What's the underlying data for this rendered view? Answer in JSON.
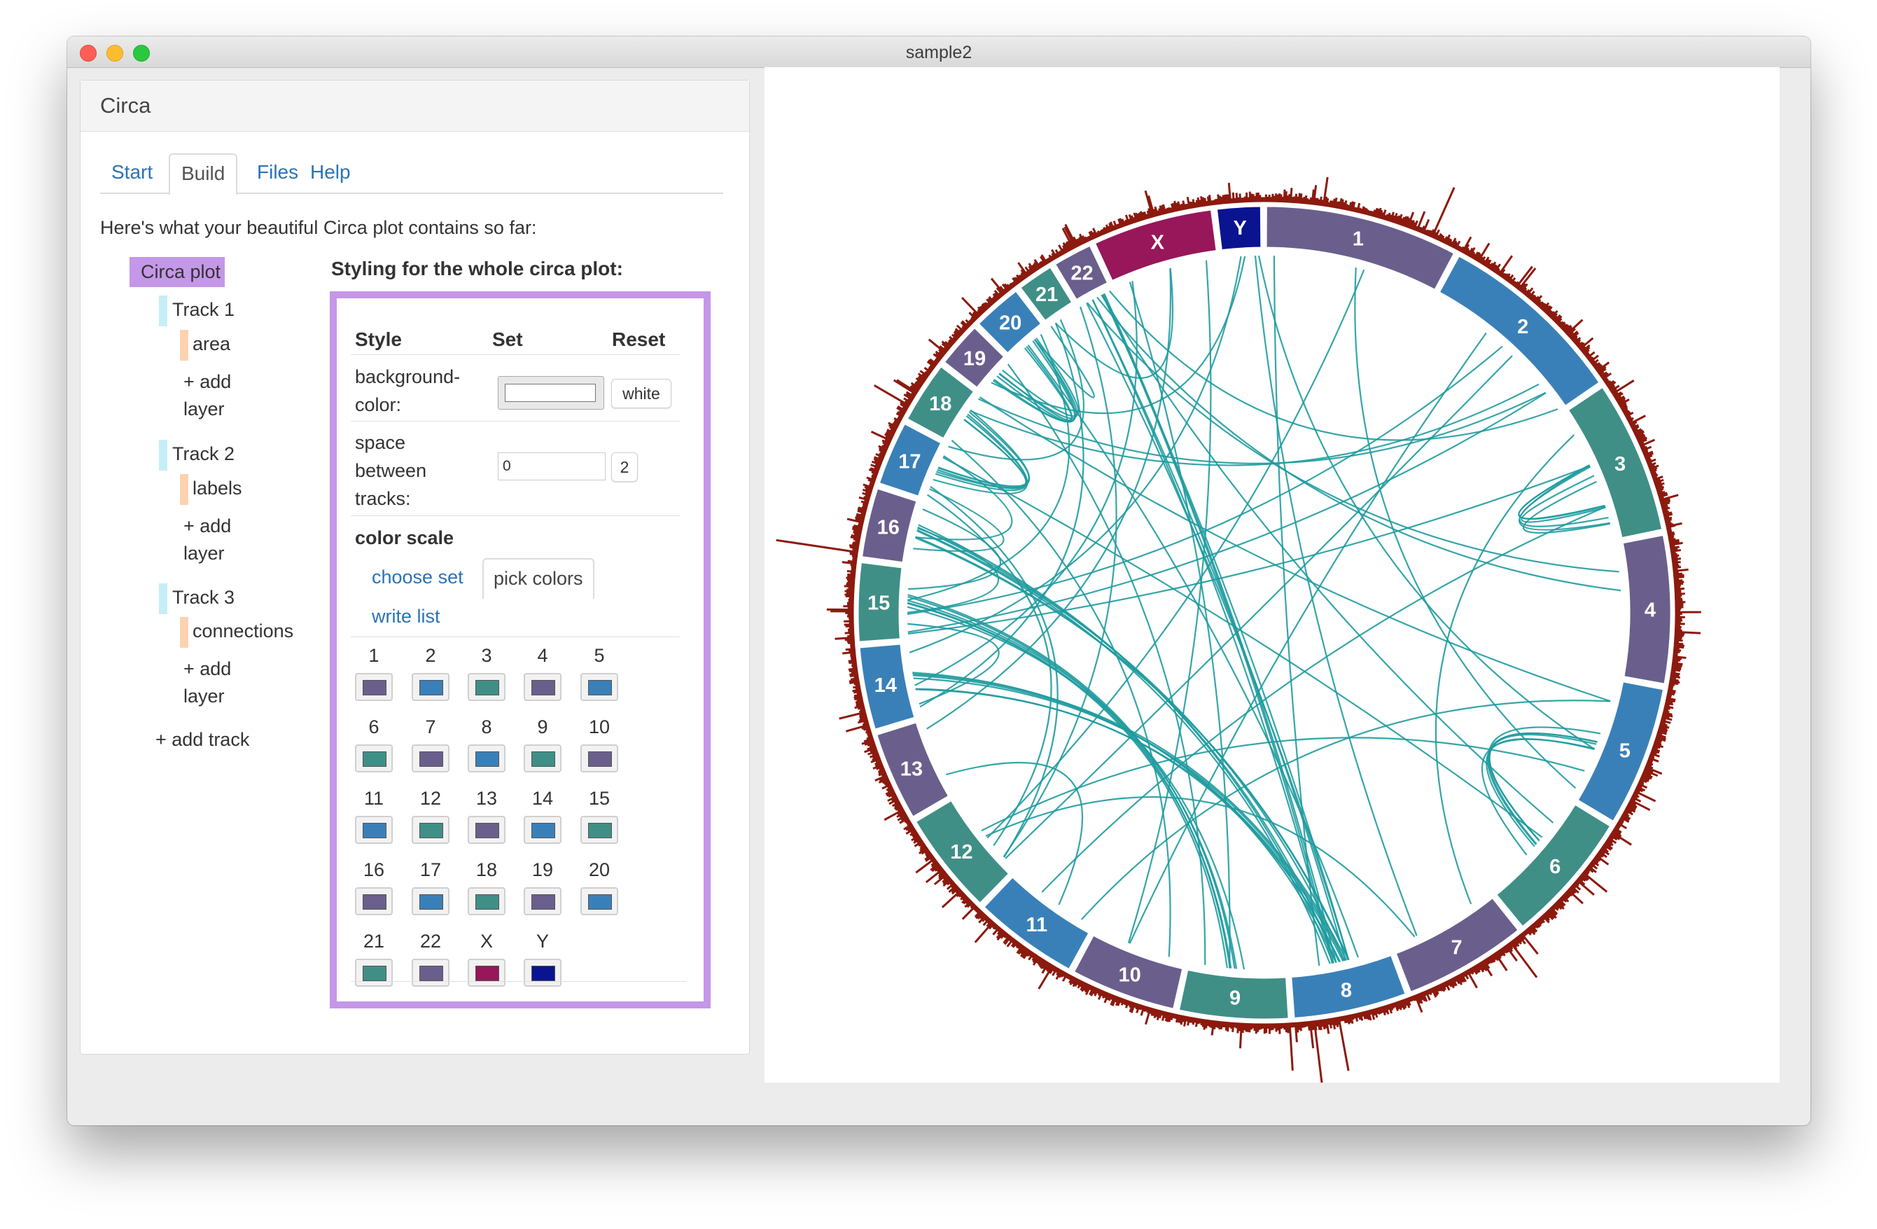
{
  "window": {
    "title": "sample2"
  },
  "app": {
    "title": "Circa"
  },
  "tabs": [
    {
      "label": "Start"
    },
    {
      "label": "Build"
    },
    {
      "label": "Files"
    },
    {
      "label": "Help"
    }
  ],
  "intro": "Here's what your beautiful Circa plot contains so far:",
  "tree": {
    "root": "Circa plot",
    "track1": "Track 1",
    "track1_layer": "area",
    "track2": "Track 2",
    "track2_layer": "labels",
    "track3": "Track 3",
    "track3_layer": "connections",
    "add_layer_1": "+ add",
    "add_layer_2": "layer",
    "add_track": "+ add track"
  },
  "styling": {
    "title": "Styling for the whole circa plot:",
    "col_style": "Style",
    "col_set": "Set",
    "col_reset": "Reset",
    "bg_label_1": "background-",
    "bg_label_2": "color:",
    "bg_reset": "white",
    "bg_value": "#ffffff",
    "space_label_1": "space",
    "space_label_2": "between",
    "space_label_3": "tracks:",
    "space_value": "0",
    "space_reset": "2",
    "color_scale": "color scale",
    "subtabs": [
      "choose set",
      "pick colors",
      "write list"
    ]
  },
  "colors": {
    "purple": "#6a5f8c",
    "blue": "#3a80b8",
    "teal": "#3f8f87",
    "x": "#97175a",
    "y": "#0a1490",
    "area": "#8c1a0e",
    "link": "#1f9b9e"
  },
  "swatches": [
    {
      "label": "1",
      "color": "#6a5f8c"
    },
    {
      "label": "2",
      "color": "#3a80b8"
    },
    {
      "label": "3",
      "color": "#3f8f87"
    },
    {
      "label": "4",
      "color": "#6a5f8c"
    },
    {
      "label": "5",
      "color": "#3a80b8"
    },
    {
      "label": "6",
      "color": "#3f8f87"
    },
    {
      "label": "7",
      "color": "#6a5f8c"
    },
    {
      "label": "8",
      "color": "#3a80b8"
    },
    {
      "label": "9",
      "color": "#3f8f87"
    },
    {
      "label": "10",
      "color": "#6a5f8c"
    },
    {
      "label": "11",
      "color": "#3a80b8"
    },
    {
      "label": "12",
      "color": "#3f8f87"
    },
    {
      "label": "13",
      "color": "#6a5f8c"
    },
    {
      "label": "14",
      "color": "#3a80b8"
    },
    {
      "label": "15",
      "color": "#3f8f87"
    },
    {
      "label": "16",
      "color": "#6a5f8c"
    },
    {
      "label": "17",
      "color": "#3a80b8"
    },
    {
      "label": "18",
      "color": "#3f8f87"
    },
    {
      "label": "19",
      "color": "#6a5f8c"
    },
    {
      "label": "20",
      "color": "#3a80b8"
    },
    {
      "label": "21",
      "color": "#3f8f87"
    },
    {
      "label": "22",
      "color": "#6a5f8c"
    },
    {
      "label": "X",
      "color": "#97175a"
    },
    {
      "label": "Y",
      "color": "#0a1490"
    }
  ],
  "chromosomes": [
    {
      "label": "1",
      "size": 249
    },
    {
      "label": "2",
      "size": 243
    },
    {
      "label": "3",
      "size": 198
    },
    {
      "label": "4",
      "size": 191
    },
    {
      "label": "5",
      "size": 181
    },
    {
      "label": "6",
      "size": 171
    },
    {
      "label": "7",
      "size": 159
    },
    {
      "label": "8",
      "size": 146
    },
    {
      "label": "9",
      "size": 141
    },
    {
      "label": "10",
      "size": 136
    },
    {
      "label": "11",
      "size": 135
    },
    {
      "label": "12",
      "size": 133
    },
    {
      "label": "13",
      "size": 115
    },
    {
      "label": "14",
      "size": 107
    },
    {
      "label": "15",
      "size": 102
    },
    {
      "label": "16",
      "size": 90
    },
    {
      "label": "17",
      "size": 83
    },
    {
      "label": "18",
      "size": 80
    },
    {
      "label": "19",
      "size": 59
    },
    {
      "label": "20",
      "size": 64
    },
    {
      "label": "21",
      "size": 47
    },
    {
      "label": "22",
      "size": 51
    },
    {
      "label": "X",
      "size": 155
    },
    {
      "label": "Y",
      "size": 57
    }
  ]
}
